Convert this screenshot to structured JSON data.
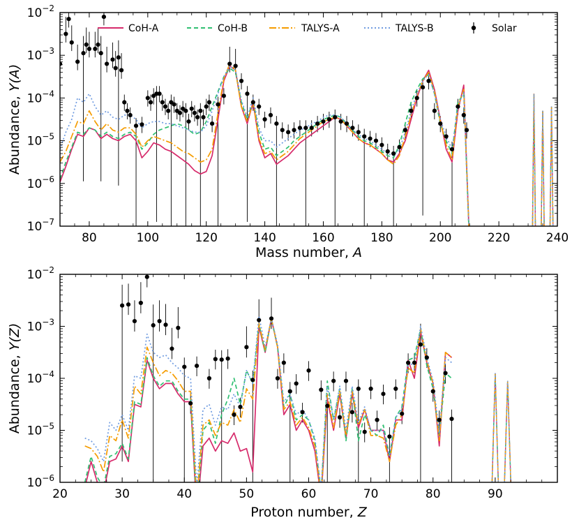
{
  "chart_data": [
    {
      "type": "line",
      "id": "top",
      "xlabel_text": "Mass number, ",
      "xlabel_var": "A",
      "ylabel_text": "Abundance, ",
      "ylabel_var": "Y(A)",
      "xlim": [
        70,
        240
      ],
      "ylim_log10": [
        -7,
        -2
      ],
      "xticks": [
        80,
        100,
        120,
        140,
        160,
        180,
        200,
        220,
        240
      ],
      "yticks_base": "10",
      "yticks_exp": [
        "−7",
        "−6",
        "−5",
        "−4",
        "−3",
        "−2"
      ],
      "x": [
        70,
        72,
        74,
        76,
        78,
        80,
        82,
        84,
        86,
        88,
        90,
        92,
        94,
        96,
        98,
        100,
        102,
        104,
        106,
        108,
        110,
        112,
        114,
        116,
        118,
        120,
        122,
        124,
        126,
        128,
        130,
        132,
        134,
        136,
        138,
        140,
        142,
        144,
        146,
        148,
        150,
        152,
        154,
        156,
        158,
        160,
        162,
        164,
        166,
        168,
        170,
        172,
        174,
        176,
        178,
        180,
        182,
        184,
        186,
        188,
        190,
        192,
        194,
        196,
        198,
        200,
        202,
        204,
        206,
        208,
        210
      ],
      "series": [
        {
          "name": "CoH-A",
          "color": "#d62a6b",
          "dash": "",
          "log10": [
            -5.97,
            -5.6,
            -5.2,
            -4.85,
            -4.9,
            -4.7,
            -4.75,
            -4.95,
            -4.85,
            -4.95,
            -5.0,
            -4.9,
            -4.85,
            -5.0,
            -5.4,
            -5.25,
            -5.05,
            -5.1,
            -5.2,
            -5.25,
            -5.35,
            -5.45,
            -5.55,
            -5.7,
            -5.78,
            -5.72,
            -5.35,
            -4.5,
            -3.6,
            -3.25,
            -3.35,
            -4.2,
            -4.6,
            -4.1,
            -5.0,
            -5.4,
            -5.3,
            -5.55,
            -5.45,
            -5.35,
            -5.2,
            -5.05,
            -4.95,
            -4.85,
            -4.75,
            -4.65,
            -4.55,
            -4.45,
            -4.5,
            -4.65,
            -4.8,
            -4.95,
            -5.05,
            -5.1,
            -5.2,
            -5.3,
            -5.45,
            -5.5,
            -5.3,
            -5.0,
            -4.5,
            -4.0,
            -3.6,
            -3.35,
            -3.8,
            -4.5,
            -5.2,
            -5.5,
            -4.3,
            -3.7,
            -7.5
          ]
        },
        {
          "name": "CoH-B",
          "color": "#2fbf71",
          "dash": "6,4",
          "log10": [
            -5.9,
            -5.5,
            -5.15,
            -4.8,
            -4.85,
            -4.7,
            -4.75,
            -4.9,
            -4.8,
            -4.9,
            -4.95,
            -4.85,
            -4.8,
            -4.9,
            -5.2,
            -5.05,
            -4.85,
            -4.75,
            -4.7,
            -4.65,
            -4.6,
            -4.65,
            -4.75,
            -4.85,
            -4.8,
            -4.55,
            -4.2,
            -3.85,
            -3.5,
            -3.3,
            -3.4,
            -4.1,
            -4.5,
            -4.05,
            -4.8,
            -5.2,
            -5.15,
            -5.35,
            -5.25,
            -5.15,
            -5.0,
            -4.9,
            -4.8,
            -4.7,
            -4.6,
            -4.5,
            -4.45,
            -4.4,
            -4.45,
            -4.6,
            -4.75,
            -4.9,
            -5.0,
            -5.05,
            -5.15,
            -5.25,
            -5.35,
            -5.4,
            -5.1,
            -4.6,
            -4.1,
            -3.8,
            -3.55,
            -3.45,
            -3.9,
            -4.6,
            -5.0,
            -5.3,
            -4.1,
            -3.9,
            -7.5
          ]
        },
        {
          "name": "TALYS-A",
          "color": "#f59c00",
          "dash": "10,3,2,3",
          "log10": [
            -5.5,
            -5.25,
            -4.9,
            -4.55,
            -4.6,
            -4.3,
            -4.55,
            -4.75,
            -4.6,
            -4.75,
            -4.8,
            -4.7,
            -4.7,
            -4.85,
            -5.15,
            -5.0,
            -4.9,
            -4.95,
            -5.0,
            -5.05,
            -5.15,
            -5.25,
            -5.3,
            -5.4,
            -5.5,
            -5.45,
            -5.2,
            -4.35,
            -3.55,
            -3.2,
            -3.35,
            -4.2,
            -4.55,
            -4.1,
            -4.95,
            -5.3,
            -5.25,
            -5.45,
            -5.35,
            -5.25,
            -5.1,
            -4.95,
            -4.85,
            -4.75,
            -4.65,
            -4.55,
            -4.5,
            -4.45,
            -4.5,
            -4.65,
            -4.8,
            -4.95,
            -5.05,
            -5.1,
            -5.2,
            -5.3,
            -5.45,
            -5.55,
            -5.35,
            -4.9,
            -4.4,
            -3.95,
            -3.6,
            -3.4,
            -3.85,
            -4.55,
            -5.1,
            -5.45,
            -4.2,
            -3.8,
            -7.5
          ]
        },
        {
          "name": "TALYS-B",
          "color": "#6f9be0",
          "dash": "2,3",
          "log10": [
            -5.2,
            -4.8,
            -4.5,
            -4.0,
            -4.1,
            -3.9,
            -4.2,
            -4.4,
            -4.3,
            -4.45,
            -4.5,
            -4.4,
            -4.4,
            -4.5,
            -4.7,
            -4.6,
            -4.55,
            -4.55,
            -4.6,
            -4.6,
            -4.65,
            -4.7,
            -4.75,
            -4.8,
            -4.8,
            -4.65,
            -4.3,
            -3.9,
            -3.5,
            -3.25,
            -3.35,
            -4.05,
            -4.45,
            -4.0,
            -4.7,
            -5.0,
            -5.0,
            -5.15,
            -5.05,
            -4.95,
            -4.85,
            -4.75,
            -4.7,
            -4.6,
            -4.55,
            -4.45,
            -4.4,
            -4.4,
            -4.45,
            -4.6,
            -4.75,
            -4.85,
            -4.95,
            -5.0,
            -5.1,
            -5.2,
            -5.3,
            -5.35,
            -5.2,
            -4.8,
            -4.3,
            -3.9,
            -3.6,
            -3.45,
            -3.9,
            -4.5,
            -4.9,
            -5.2,
            -4.2,
            -3.85,
            -7.5
          ]
        }
      ],
      "actinide_peaks": [
        {
          "x": 232,
          "log10": -3.9
        },
        {
          "x": 235,
          "log10": -4.3
        },
        {
          "x": 238,
          "log10": -4.2
        }
      ],
      "solar": {
        "name": "Solar",
        "x": [
          70,
          72,
          73,
          74,
          76,
          78,
          79,
          80,
          82,
          83,
          84,
          85,
          86,
          88,
          89,
          90,
          91,
          92,
          93,
          94,
          96,
          98,
          100,
          101,
          102,
          103,
          104,
          105,
          106,
          107,
          108,
          109,
          110,
          111,
          112,
          113,
          114,
          115,
          116,
          117,
          118,
          119,
          120,
          121,
          122,
          124,
          126,
          128,
          130,
          132,
          134,
          136,
          138,
          140,
          142,
          144,
          146,
          148,
          150,
          152,
          154,
          156,
          158,
          160,
          162,
          164,
          166,
          168,
          170,
          172,
          174,
          176,
          178,
          180,
          182,
          184,
          186,
          188,
          190,
          192,
          194,
          196,
          198,
          200,
          202,
          204,
          206,
          208,
          209
        ],
        "log10": [
          -3.2,
          -2.5,
          -2.15,
          -2.7,
          -3.15,
          -2.95,
          -2.75,
          -2.85,
          -2.85,
          -2.75,
          -2.95,
          -2.1,
          -3.2,
          -3.1,
          -3.3,
          -3.05,
          -3.35,
          -4.1,
          -4.3,
          -4.4,
          -4.65,
          -4.62,
          -4.0,
          -4.1,
          -3.95,
          -3.9,
          -3.9,
          -4.1,
          -4.2,
          -4.3,
          -4.1,
          -4.15,
          -4.3,
          -4.35,
          -4.25,
          -4.3,
          -4.55,
          -4.25,
          -4.35,
          -4.45,
          -4.3,
          -4.45,
          -4.2,
          -4.1,
          -4.6,
          -4.15,
          -3.95,
          -3.2,
          -3.25,
          -3.6,
          -3.9,
          -4.1,
          -4.2,
          -4.5,
          -4.4,
          -4.6,
          -4.75,
          -4.8,
          -4.75,
          -4.7,
          -4.7,
          -4.7,
          -4.6,
          -4.55,
          -4.5,
          -4.45,
          -4.55,
          -4.6,
          -4.7,
          -4.8,
          -4.9,
          -4.95,
          -5.0,
          -5.1,
          -5.25,
          -5.3,
          -5.15,
          -4.75,
          -4.3,
          -4.0,
          -3.75,
          -3.6,
          -4.3,
          -4.6,
          -4.9,
          -5.2,
          -4.2,
          -4.4,
          -4.75
        ]
      }
    },
    {
      "type": "line",
      "id": "bottom",
      "xlabel_text": "Proton number, ",
      "xlabel_var": "Z",
      "ylabel_text": "Abundance, ",
      "ylabel_var": "Y(Z)",
      "xlim": [
        20,
        100
      ],
      "ylim_log10": [
        -6,
        -2
      ],
      "xticks": [
        20,
        30,
        40,
        50,
        60,
        70,
        80,
        90
      ],
      "yticks_base": "10",
      "yticks_exp": [
        "−6",
        "−5",
        "−4",
        "−3",
        "−2"
      ],
      "x": [
        24,
        25,
        26,
        27,
        28,
        29,
        30,
        31,
        32,
        33,
        34,
        35,
        36,
        37,
        38,
        39,
        40,
        41,
        42,
        43,
        44,
        45,
        46,
        47,
        48,
        49,
        50,
        51,
        52,
        53,
        54,
        55,
        56,
        57,
        58,
        59,
        60,
        61,
        62,
        63,
        64,
        65,
        66,
        67,
        68,
        69,
        70,
        71,
        72,
        73,
        74,
        75,
        76,
        77,
        78,
        79,
        80,
        81,
        82,
        83
      ],
      "series": [
        {
          "name": "CoH-A",
          "color": "#d62a6b",
          "dash": "",
          "log10": [
            -6.1,
            -5.6,
            -6.0,
            -6.2,
            -5.6,
            -5.55,
            -5.3,
            -5.6,
            -4.5,
            -4.55,
            -3.65,
            -4.0,
            -4.2,
            -4.1,
            -4.1,
            -4.3,
            -4.45,
            -4.45,
            -6.6,
            -5.3,
            -5.15,
            -5.4,
            -5.2,
            -5.25,
            -5.05,
            -5.4,
            -5.35,
            -5.8,
            -3.0,
            -3.5,
            -2.85,
            -3.4,
            -4.7,
            -4.5,
            -5.0,
            -4.8,
            -5.0,
            -5.4,
            -6.3,
            -4.4,
            -5.0,
            -4.3,
            -5.15,
            -4.3,
            -4.95,
            -4.6,
            -5.0,
            -5.0,
            -5.0,
            -5.6,
            -4.8,
            -4.8,
            -3.65,
            -4.0,
            -3.1,
            -3.7,
            -4.1,
            -5.3,
            -3.5,
            -3.6
          ]
        },
        {
          "name": "CoH-B",
          "color": "#2fbf71",
          "dash": "6,4",
          "log10": [
            -6.0,
            -5.5,
            -5.9,
            -6.1,
            -5.5,
            -5.45,
            -5.25,
            -5.55,
            -4.45,
            -4.5,
            -3.6,
            -3.95,
            -4.15,
            -4.05,
            -4.05,
            -4.25,
            -4.4,
            -4.4,
            -6.5,
            -5.0,
            -4.85,
            -5.25,
            -4.7,
            -4.4,
            -4.0,
            -4.5,
            -3.85,
            -4.1,
            -2.95,
            -3.5,
            -2.85,
            -3.4,
            -4.55,
            -4.3,
            -4.8,
            -4.7,
            -4.8,
            -5.2,
            -6.2,
            -4.05,
            -4.8,
            -4.2,
            -5.2,
            -4.2,
            -5.2,
            -4.7,
            -5.0,
            -5.1,
            -4.9,
            -5.5,
            -4.75,
            -4.55,
            -3.65,
            -3.6,
            -3.05,
            -3.75,
            -4.2,
            -5.1,
            -3.9,
            -4.0
          ]
        },
        {
          "name": "TALYS-A",
          "color": "#f59c00",
          "dash": "10,3,2,3",
          "log10": [
            -5.3,
            -5.35,
            -5.5,
            -5.8,
            -5.1,
            -5.2,
            -4.8,
            -5.15,
            -4.15,
            -4.3,
            -3.4,
            -3.7,
            -3.95,
            -3.85,
            -3.9,
            -4.05,
            -4.25,
            -4.25,
            -6.3,
            -4.9,
            -4.8,
            -5.1,
            -4.85,
            -4.9,
            -4.6,
            -4.85,
            -4.2,
            -4.4,
            -2.95,
            -3.45,
            -2.85,
            -3.4,
            -4.6,
            -4.45,
            -4.9,
            -4.75,
            -4.95,
            -5.3,
            -6.25,
            -4.3,
            -4.95,
            -4.25,
            -5.1,
            -4.25,
            -4.9,
            -4.6,
            -5.1,
            -5.1,
            -5.15,
            -5.6,
            -4.9,
            -4.7,
            -3.8,
            -3.9,
            -3.05,
            -3.65,
            -4.1,
            -5.2,
            -3.5,
            -3.6
          ]
        },
        {
          "name": "TALYS-B",
          "color": "#6f9be0",
          "dash": "2,3",
          "log10": [
            -5.15,
            -5.2,
            -5.35,
            -5.6,
            -4.85,
            -5.0,
            -4.7,
            -5.0,
            -3.95,
            -4.0,
            -3.15,
            -3.5,
            -3.6,
            -3.55,
            -3.7,
            -3.8,
            -3.95,
            -4.0,
            -6.1,
            -4.6,
            -4.5,
            -4.9,
            -4.55,
            -4.6,
            -4.3,
            -4.55,
            -3.85,
            -4.1,
            -2.8,
            -3.4,
            -2.85,
            -3.35,
            -4.45,
            -4.3,
            -4.7,
            -4.6,
            -4.8,
            -5.15,
            -6.15,
            -4.15,
            -4.8,
            -4.15,
            -5.0,
            -4.15,
            -4.85,
            -4.55,
            -5.0,
            -5.0,
            -5.0,
            -5.5,
            -4.75,
            -4.6,
            -3.7,
            -3.75,
            -3.0,
            -3.6,
            -4.05,
            -5.05,
            -3.6,
            -3.7
          ]
        }
      ],
      "actinide_peaks": [
        {
          "x": 90,
          "log10": -3.9
        },
        {
          "x": 92,
          "log10": -4.05
        }
      ],
      "solar": {
        "name": "Solar",
        "x": [
          30,
          31,
          32,
          33,
          34,
          35,
          36,
          37,
          38,
          39,
          40,
          41,
          42,
          44,
          45,
          46,
          47,
          48,
          49,
          50,
          51,
          52,
          54,
          55,
          56,
          57,
          58,
          59,
          60,
          62,
          63,
          64,
          65,
          66,
          67,
          68,
          69,
          70,
          71,
          72,
          73,
          74,
          75,
          76,
          77,
          78,
          79,
          80,
          81,
          82,
          83
        ],
        "log10": [
          -2.6,
          -2.58,
          -2.9,
          -2.55,
          -2.05,
          -2.98,
          -2.9,
          -2.97,
          -3.43,
          -3.03,
          -3.78,
          -4.48,
          -3.76,
          -4.0,
          -3.63,
          -3.64,
          -3.62,
          -4.7,
          -4.55,
          -3.4,
          -4.03,
          -2.88,
          -2.85,
          -4.0,
          -3.7,
          -4.25,
          -4.1,
          -4.65,
          -3.85,
          -4.22,
          -4.53,
          -4.05,
          -4.75,
          -4.05,
          -4.65,
          -4.2,
          -5.03,
          -4.2,
          -4.8,
          -4.3,
          -5.12,
          -4.2,
          -4.68,
          -3.7,
          -3.7,
          -3.35,
          -3.6,
          -4.25,
          -4.8,
          -3.9,
          -4.78
        ]
      }
    }
  ]
}
